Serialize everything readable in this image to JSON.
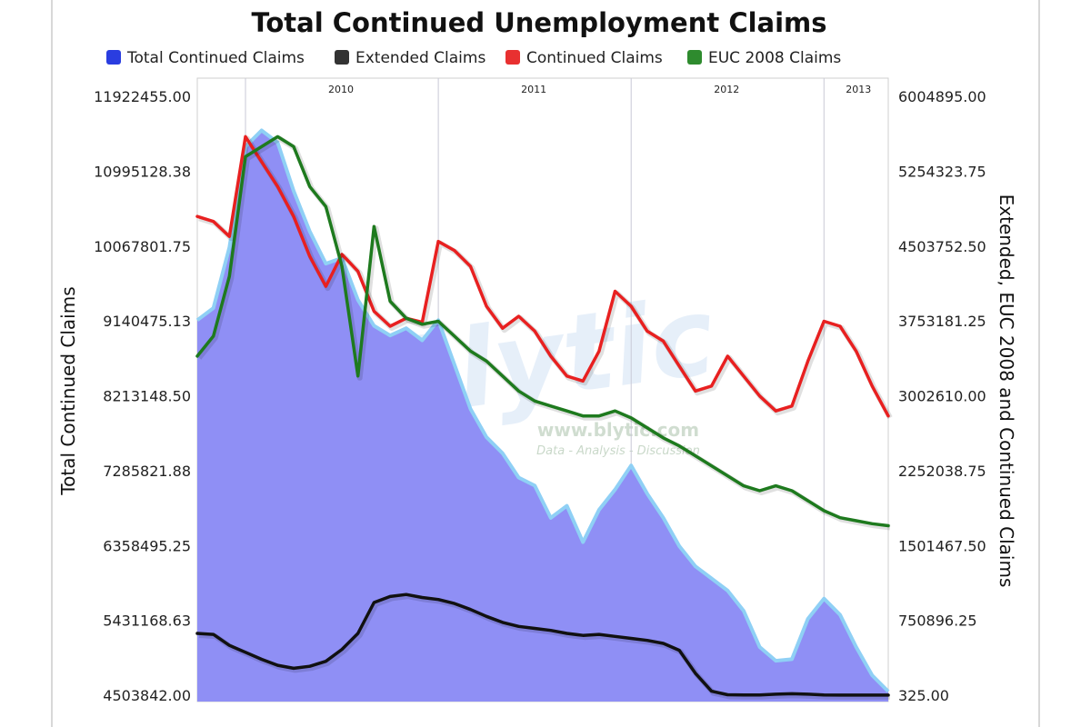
{
  "chart_data": {
    "type": "area",
    "title": "Total Continued Unemployment Claims",
    "legend": {
      "position": "top",
      "entries": [
        {
          "name": "Total Continued Claims",
          "color": "#2a3de0"
        },
        {
          "name": "Extended Claims",
          "color": "#333333"
        },
        {
          "name": "Continued Claims",
          "color": "#e83030"
        },
        {
          "name": "EUC 2008 Claims",
          "color": "#2e8b2e"
        }
      ]
    },
    "x_axis": {
      "type": "date",
      "range": [
        "2009-10",
        "2013-05"
      ],
      "year_labels": [
        {
          "label": "2010",
          "at": "2010-01"
        },
        {
          "label": "2011",
          "at": "2011-01"
        },
        {
          "label": "2012",
          "at": "2012-01"
        },
        {
          "label": "2013",
          "at": "2013-01"
        }
      ]
    },
    "y_left": {
      "label": "Total Continued Claims",
      "range": [
        4503842,
        11922455
      ],
      "ticks": [
        "11922455.00",
        "10995128.38",
        "10067801.75",
        "9140475.13",
        "8213148.50",
        "7285821.88",
        "6358495.25",
        "5431168.63",
        "4503842.00"
      ]
    },
    "y_right": {
      "label": "Extended, EUC 2008 and Continued Claims",
      "range": [
        325,
        6004895
      ],
      "ticks": [
        "6004895.00",
        "5254323.75",
        "4503752.50",
        "3753181.25",
        "3002610.00",
        "2252038.75",
        "1501467.50",
        "750896.25",
        "325.00"
      ]
    },
    "grid": {
      "vertical": true,
      "horizontal": false
    },
    "series": [
      {
        "name": "Total Continued Claims",
        "type": "area",
        "axis": "left",
        "color": "#8f8ff5",
        "data": [
          [
            "2009-10",
            9150000
          ],
          [
            "2009-11",
            9300000
          ],
          [
            "2009-12",
            10050000
          ],
          [
            "2010-01",
            11300000
          ],
          [
            "2010-02",
            11500000
          ],
          [
            "2010-03",
            11350000
          ],
          [
            "2010-04",
            10750000
          ],
          [
            "2010-05",
            10250000
          ],
          [
            "2010-06",
            9850000
          ],
          [
            "2010-07",
            9920000
          ],
          [
            "2010-08",
            9400000
          ],
          [
            "2010-09",
            9080000
          ],
          [
            "2010-10",
            8960000
          ],
          [
            "2010-11",
            9050000
          ],
          [
            "2010-12",
            8900000
          ],
          [
            "2011-01",
            9150000
          ],
          [
            "2011-02",
            8600000
          ],
          [
            "2011-03",
            8050000
          ],
          [
            "2011-04",
            7700000
          ],
          [
            "2011-05",
            7500000
          ],
          [
            "2011-06",
            7200000
          ],
          [
            "2011-07",
            7100000
          ],
          [
            "2011-08",
            6700000
          ],
          [
            "2011-09",
            6850000
          ],
          [
            "2011-10",
            6400000
          ],
          [
            "2011-11",
            6800000
          ],
          [
            "2011-12",
            7050000
          ],
          [
            "2012-01",
            7350000
          ],
          [
            "2012-02",
            7000000
          ],
          [
            "2012-03",
            6700000
          ],
          [
            "2012-04",
            6350000
          ],
          [
            "2012-05",
            6100000
          ],
          [
            "2012-06",
            5950000
          ],
          [
            "2012-07",
            5800000
          ],
          [
            "2012-08",
            5550000
          ],
          [
            "2012-09",
            5100000
          ],
          [
            "2012-10",
            4930000
          ],
          [
            "2012-11",
            4950000
          ],
          [
            "2012-12",
            5450000
          ],
          [
            "2013-01",
            5700000
          ],
          [
            "2013-02",
            5500000
          ],
          [
            "2013-03",
            5100000
          ],
          [
            "2013-04",
            4750000
          ],
          [
            "2013-05",
            4550000
          ]
        ]
      },
      {
        "name": "Extended Claims",
        "type": "line",
        "axis": "right",
        "color": "#111111",
        "data": [
          [
            "2009-10",
            620000
          ],
          [
            "2009-11",
            610000
          ],
          [
            "2009-12",
            500000
          ],
          [
            "2010-01",
            430000
          ],
          [
            "2010-02",
            360000
          ],
          [
            "2010-03",
            300000
          ],
          [
            "2010-04",
            270000
          ],
          [
            "2010-05",
            290000
          ],
          [
            "2010-06",
            340000
          ],
          [
            "2010-07",
            460000
          ],
          [
            "2010-08",
            620000
          ],
          [
            "2010-09",
            930000
          ],
          [
            "2010-10",
            990000
          ],
          [
            "2010-11",
            1010000
          ],
          [
            "2010-12",
            980000
          ],
          [
            "2011-01",
            960000
          ],
          [
            "2011-02",
            920000
          ],
          [
            "2011-03",
            860000
          ],
          [
            "2011-04",
            790000
          ],
          [
            "2011-05",
            730000
          ],
          [
            "2011-06",
            690000
          ],
          [
            "2011-07",
            670000
          ],
          [
            "2011-08",
            650000
          ],
          [
            "2011-09",
            620000
          ],
          [
            "2011-10",
            600000
          ],
          [
            "2011-11",
            610000
          ],
          [
            "2011-12",
            590000
          ],
          [
            "2012-01",
            570000
          ],
          [
            "2012-02",
            550000
          ],
          [
            "2012-03",
            520000
          ],
          [
            "2012-04",
            450000
          ],
          [
            "2012-05",
            220000
          ],
          [
            "2012-06",
            40000
          ],
          [
            "2012-07",
            5000
          ],
          [
            "2012-08",
            3000
          ],
          [
            "2012-09",
            2000
          ],
          [
            "2012-10",
            10000
          ],
          [
            "2012-11",
            15000
          ],
          [
            "2012-12",
            10000
          ],
          [
            "2013-01",
            2000
          ],
          [
            "2013-02",
            1000
          ],
          [
            "2013-03",
            1000
          ],
          [
            "2013-04",
            1000
          ],
          [
            "2013-05",
            1000
          ]
        ]
      },
      {
        "name": "Continued Claims",
        "type": "line",
        "axis": "right",
        "color": "#e82020",
        "data": [
          [
            "2009-10",
            4800000
          ],
          [
            "2009-11",
            4750000
          ],
          [
            "2009-12",
            4600000
          ],
          [
            "2010-01",
            5600000
          ],
          [
            "2010-02",
            5350000
          ],
          [
            "2010-03",
            5100000
          ],
          [
            "2010-04",
            4800000
          ],
          [
            "2010-05",
            4400000
          ],
          [
            "2010-06",
            4100000
          ],
          [
            "2010-07",
            4420000
          ],
          [
            "2010-08",
            4250000
          ],
          [
            "2010-09",
            3850000
          ],
          [
            "2010-10",
            3700000
          ],
          [
            "2010-11",
            3780000
          ],
          [
            "2010-12",
            3740000
          ],
          [
            "2011-01",
            4550000
          ],
          [
            "2011-02",
            4460000
          ],
          [
            "2011-03",
            4300000
          ],
          [
            "2011-04",
            3900000
          ],
          [
            "2011-05",
            3680000
          ],
          [
            "2011-06",
            3800000
          ],
          [
            "2011-07",
            3650000
          ],
          [
            "2011-08",
            3400000
          ],
          [
            "2011-09",
            3200000
          ],
          [
            "2011-10",
            3150000
          ],
          [
            "2011-11",
            3450000
          ],
          [
            "2011-12",
            4050000
          ],
          [
            "2012-01",
            3900000
          ],
          [
            "2012-02",
            3650000
          ],
          [
            "2012-03",
            3550000
          ],
          [
            "2012-04",
            3300000
          ],
          [
            "2012-05",
            3050000
          ],
          [
            "2012-06",
            3100000
          ],
          [
            "2012-07",
            3400000
          ],
          [
            "2012-08",
            3200000
          ],
          [
            "2012-09",
            3000000
          ],
          [
            "2012-10",
            2850000
          ],
          [
            "2012-11",
            2900000
          ],
          [
            "2012-12",
            3350000
          ],
          [
            "2013-01",
            3750000
          ],
          [
            "2013-02",
            3700000
          ],
          [
            "2013-03",
            3450000
          ],
          [
            "2013-04",
            3100000
          ],
          [
            "2013-05",
            2800000
          ]
        ]
      },
      {
        "name": "EUC 2008 Claims",
        "type": "line",
        "axis": "right",
        "color": "#1e7a1e",
        "data": [
          [
            "2009-10",
            3400000
          ],
          [
            "2009-11",
            3600000
          ],
          [
            "2009-12",
            4200000
          ],
          [
            "2010-01",
            5400000
          ],
          [
            "2010-02",
            5500000
          ],
          [
            "2010-03",
            5600000
          ],
          [
            "2010-04",
            5500000
          ],
          [
            "2010-05",
            5100000
          ],
          [
            "2010-06",
            4900000
          ],
          [
            "2010-07",
            4300000
          ],
          [
            "2010-08",
            3200000
          ],
          [
            "2010-09",
            4700000
          ],
          [
            "2010-10",
            3950000
          ],
          [
            "2010-11",
            3780000
          ],
          [
            "2010-12",
            3720000
          ],
          [
            "2011-01",
            3750000
          ],
          [
            "2011-02",
            3600000
          ],
          [
            "2011-03",
            3450000
          ],
          [
            "2011-04",
            3350000
          ],
          [
            "2011-05",
            3200000
          ],
          [
            "2011-06",
            3050000
          ],
          [
            "2011-07",
            2950000
          ],
          [
            "2011-08",
            2900000
          ],
          [
            "2011-09",
            2850000
          ],
          [
            "2011-10",
            2800000
          ],
          [
            "2011-11",
            2800000
          ],
          [
            "2011-12",
            2850000
          ],
          [
            "2012-01",
            2780000
          ],
          [
            "2012-02",
            2680000
          ],
          [
            "2012-03",
            2580000
          ],
          [
            "2012-04",
            2500000
          ],
          [
            "2012-05",
            2400000
          ],
          [
            "2012-06",
            2300000
          ],
          [
            "2012-07",
            2200000
          ],
          [
            "2012-08",
            2100000
          ],
          [
            "2012-09",
            2050000
          ],
          [
            "2012-10",
            2100000
          ],
          [
            "2012-11",
            2050000
          ],
          [
            "2012-12",
            1950000
          ],
          [
            "2013-01",
            1850000
          ],
          [
            "2013-02",
            1780000
          ],
          [
            "2013-03",
            1750000
          ],
          [
            "2013-04",
            1720000
          ],
          [
            "2013-05",
            1700000
          ]
        ]
      }
    ]
  },
  "watermark": {
    "brand": "Blytic",
    "url": "www.blytic.com",
    "tagline": "Data - Analysis - Discussion"
  }
}
